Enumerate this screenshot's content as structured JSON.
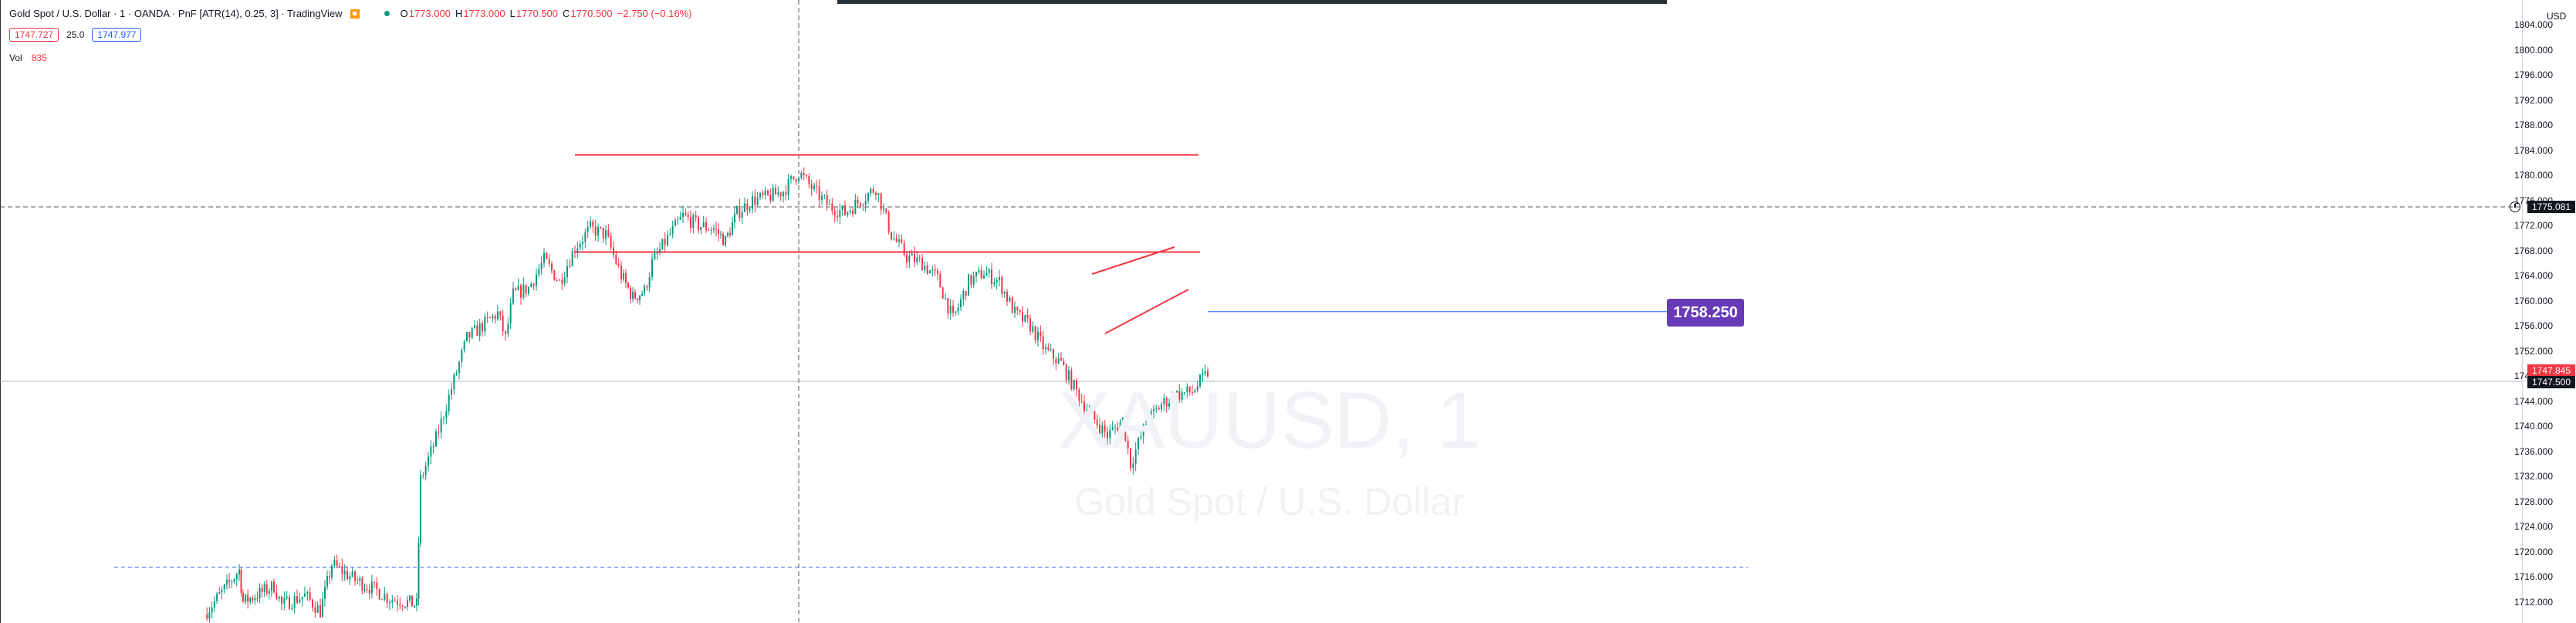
{
  "header": {
    "title": "Gold Spot / U.S. Dollar · 1 · OANDA · PnF [ATR(14), 0.25, 3] · TradingView",
    "ohlc": [
      {
        "key": "O",
        "value": "1773.000"
      },
      {
        "key": "H",
        "value": "1773.000"
      },
      {
        "key": "L",
        "value": "1770.500"
      },
      {
        "key": "C",
        "value": "1770.500"
      }
    ],
    "change": "−2.750 (−0.16%)",
    "bid": "1747.727",
    "spread": "25.0",
    "ask": "1747.977",
    "vol_label": "Vol",
    "vol_value": "835"
  },
  "watermark": {
    "symbol": "XAUUSD, 1",
    "name": "Gold Spot / U.S. Dollar"
  },
  "price_axis": {
    "currency": "USD",
    "ticks": [
      "1804.000",
      "1800.000",
      "1796.000",
      "1792.000",
      "1788.000",
      "1784.000",
      "1780.000",
      "1776.000",
      "1772.000",
      "1768.000",
      "1764.000",
      "1760.000",
      "1756.000",
      "1752.000",
      "1748.000",
      "1744.000",
      "1740.000",
      "1736.000",
      "1732.000",
      "1728.000",
      "1724.000",
      "1720.000",
      "1716.000",
      "1712.000"
    ],
    "crosshair_label": "1775.081",
    "close_label": "1747.845",
    "hover_label": "1747.500"
  },
  "target_label": "1758.250",
  "colors": {
    "up": "#089981",
    "down": "#f23645",
    "drawing_red": "#f23645",
    "target_line": "#2962ff",
    "target_bg": "#673ab7",
    "grid_dashed": "#555555",
    "lower_dotted": "#2962ff"
  },
  "chart_data": {
    "type": "candlestick",
    "y_range": [
      1710,
      1806
    ],
    "horizontal_lines": [
      {
        "name": "resistance",
        "y": 1783.25
      },
      {
        "name": "support",
        "y": 1767.75
      },
      {
        "name": "target",
        "y": 1758.25
      },
      {
        "name": "lower-dotted",
        "y": 1717.5
      }
    ],
    "channel": {
      "upper": [
        [
          1767.0,
          1769.2
        ]
      ],
      "lower": [
        [
          1755.5,
          1762.5
        ]
      ]
    },
    "path": [
      [
        0.0,
        1710.0
      ],
      [
        0.45,
        1717.0
      ],
      [
        0.5,
        1712.0
      ],
      [
        0.9,
        1714.5
      ],
      [
        1.0,
        1711.5
      ],
      [
        1.3,
        1713.0
      ],
      [
        1.5,
        1710.5
      ],
      [
        1.65,
        1718.0
      ],
      [
        1.95,
        1715.5
      ],
      [
        2.2,
        1714.0
      ],
      [
        2.4,
        1712.5
      ],
      [
        2.6,
        1712.0
      ],
      [
        2.75,
        1711.5
      ],
      [
        2.8,
        1731.5
      ],
      [
        3.0,
        1738.0
      ],
      [
        3.2,
        1746.0
      ],
      [
        3.4,
        1754.0
      ],
      [
        3.6,
        1756.0
      ],
      [
        3.8,
        1758.0
      ],
      [
        3.9,
        1754.0
      ],
      [
        4.0,
        1761.0
      ],
      [
        4.2,
        1762.0
      ],
      [
        4.4,
        1766.5
      ],
      [
        4.6,
        1763.0
      ],
      [
        4.8,
        1768.5
      ],
      [
        5.0,
        1771.5
      ],
      [
        5.2,
        1770.5
      ],
      [
        5.4,
        1764.0
      ],
      [
        5.55,
        1760.5
      ],
      [
        5.7,
        1761.5
      ],
      [
        5.8,
        1766.0
      ],
      [
        6.0,
        1770.0
      ],
      [
        6.2,
        1773.5
      ],
      [
        6.4,
        1772.0
      ],
      [
        6.6,
        1771.5
      ],
      [
        6.75,
        1769.5
      ],
      [
        6.9,
        1774.0
      ],
      [
        7.1,
        1776.0
      ],
      [
        7.3,
        1776.5
      ],
      [
        7.5,
        1777.5
      ],
      [
        7.7,
        1780.5
      ],
      [
        7.9,
        1777.5
      ],
      [
        8.1,
        1775.0
      ],
      [
        8.3,
        1774.0
      ],
      [
        8.5,
        1776.0
      ],
      [
        8.7,
        1778.0
      ],
      [
        8.9,
        1770.5
      ],
      [
        9.1,
        1767.0
      ],
      [
        9.3,
        1766.0
      ],
      [
        9.5,
        1763.5
      ],
      [
        9.7,
        1757.0
      ],
      [
        9.9,
        1763.0
      ],
      [
        10.1,
        1764.5
      ],
      [
        10.3,
        1763.0
      ],
      [
        10.5,
        1758.0
      ],
      [
        10.7,
        1756.0
      ],
      [
        10.9,
        1752.0
      ],
      [
        11.1,
        1750.0
      ],
      [
        11.3,
        1745.5
      ],
      [
        11.5,
        1741.5
      ],
      [
        11.7,
        1738.5
      ],
      [
        11.9,
        1741.0
      ],
      [
        12.0,
        1734.0
      ],
      [
        12.2,
        1740.5
      ],
      [
        12.4,
        1743.5
      ],
      [
        12.6,
        1745.0
      ],
      [
        12.8,
        1745.5
      ],
      [
        13.0,
        1748.5
      ]
    ]
  }
}
